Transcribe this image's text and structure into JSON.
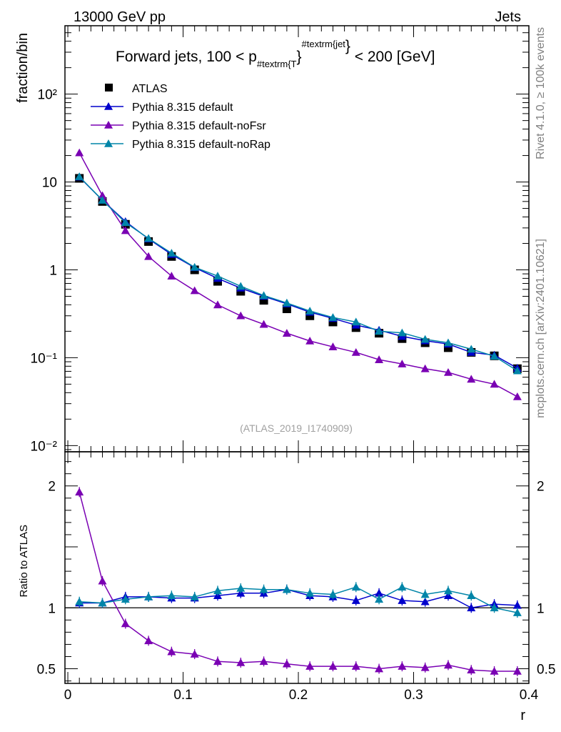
{
  "header": {
    "left": "13000 GeV pp",
    "right": "Jets"
  },
  "side": {
    "rivet": "Rivet 4.1.0, ≥ 100k events",
    "mcplots": "mcplots.cern.ch [arXiv:2401.10621]"
  },
  "colors": {
    "atlas": "#000000",
    "default": "#0000cc",
    "noFsr": "#7a00b3",
    "noRap": "#0085a8"
  },
  "chart_data": [
    {
      "type": "scatter",
      "title": "Forward jets, 100 < p_{#textrm{T}}^{#textrm{jet}} < 200 [GeV]",
      "title_parts": [
        "Forward jets, 100 < p",
        "#textrm{T",
        "}",
        "#textrm{jet",
        "}",
        " < 200 [GeV]"
      ],
      "xlabel": "r",
      "ylabel": "fraction/bin",
      "yscale": "log",
      "xlim": [
        -0.0025,
        0.4
      ],
      "ylim": [
        0.0085,
        600
      ],
      "y_tick_labels": [
        "10⁻²",
        "10⁻¹",
        "1",
        "10",
        "10²"
      ],
      "watermark": "(ATLAS_2019_I1740909)",
      "x": [
        0.01,
        0.03,
        0.05,
        0.07,
        0.09,
        0.11,
        0.13,
        0.15,
        0.17,
        0.19,
        0.21,
        0.23,
        0.25,
        0.27,
        0.29,
        0.31,
        0.33,
        0.35,
        0.37,
        0.39
      ],
      "series": [
        {
          "name": "ATLAS",
          "marker": "square",
          "values": [
            11.0,
            6.0,
            3.3,
            2.1,
            1.42,
            1.0,
            0.74,
            0.57,
            0.45,
            0.36,
            0.3,
            0.255,
            0.22,
            0.19,
            0.165,
            0.148,
            0.13,
            0.115,
            0.105,
            0.075
          ]
        },
        {
          "name": "Pythia 8.315 default",
          "marker": "triangle",
          "values": [
            11.4,
            6.2,
            3.55,
            2.25,
            1.5,
            1.06,
            0.8,
            0.62,
            0.5,
            0.41,
            0.33,
            0.28,
            0.235,
            0.206,
            0.175,
            0.156,
            0.143,
            0.115,
            0.107,
            0.076
          ]
        },
        {
          "name": "Pythia 8.315 default-noFsr",
          "marker": "triangle",
          "values": [
            21.5,
            7.0,
            2.8,
            1.42,
            0.85,
            0.58,
            0.4,
            0.3,
            0.24,
            0.19,
            0.155,
            0.133,
            0.115,
            0.095,
            0.085,
            0.075,
            0.068,
            0.057,
            0.05,
            0.036
          ]
        },
        {
          "name": "Pythia 8.315 default-noRap",
          "marker": "triangle",
          "values": [
            11.5,
            6.2,
            3.45,
            2.28,
            1.55,
            1.07,
            0.85,
            0.65,
            0.51,
            0.42,
            0.34,
            0.287,
            0.255,
            0.2,
            0.192,
            0.162,
            0.148,
            0.125,
            0.104,
            0.071
          ]
        }
      ]
    },
    {
      "type": "scatter",
      "title": "",
      "xlabel": "r",
      "ylabel": "Ratio to ATLAS",
      "xlim": [
        -0.0025,
        0.4
      ],
      "ylim": [
        0.38,
        2.28
      ],
      "reference": 1,
      "x_tick_labels": [
        "0",
        "0.1",
        "0.2",
        "0.3",
        "0.4"
      ],
      "y_tick_labels": [
        "0.5",
        "1",
        "2"
      ],
      "x": [
        0.01,
        0.03,
        0.05,
        0.07,
        0.09,
        0.11,
        0.13,
        0.15,
        0.17,
        0.19,
        0.21,
        0.23,
        0.25,
        0.27,
        0.29,
        0.31,
        0.33,
        0.35,
        0.37,
        0.39
      ],
      "series": [
        {
          "name": "Pythia 8.315 default",
          "values": [
            1.04,
            1.04,
            1.09,
            1.09,
            1.08,
            1.08,
            1.1,
            1.12,
            1.12,
            1.15,
            1.1,
            1.09,
            1.06,
            1.12,
            1.06,
            1.05,
            1.1,
            1.0,
            1.03,
            1.02
          ]
        },
        {
          "name": "Pythia 8.315 default-noFsr",
          "values": [
            1.95,
            1.22,
            0.87,
            0.73,
            0.64,
            0.62,
            0.56,
            0.55,
            0.56,
            0.54,
            0.52,
            0.52,
            0.52,
            0.5,
            0.52,
            0.51,
            0.53,
            0.49,
            0.48,
            0.48
          ]
        },
        {
          "name": "Pythia 8.315 default-noRap",
          "values": [
            1.05,
            1.04,
            1.07,
            1.09,
            1.1,
            1.09,
            1.14,
            1.16,
            1.15,
            1.15,
            1.12,
            1.11,
            1.17,
            1.07,
            1.17,
            1.11,
            1.14,
            1.1,
            1.0,
            0.96
          ]
        }
      ]
    }
  ]
}
